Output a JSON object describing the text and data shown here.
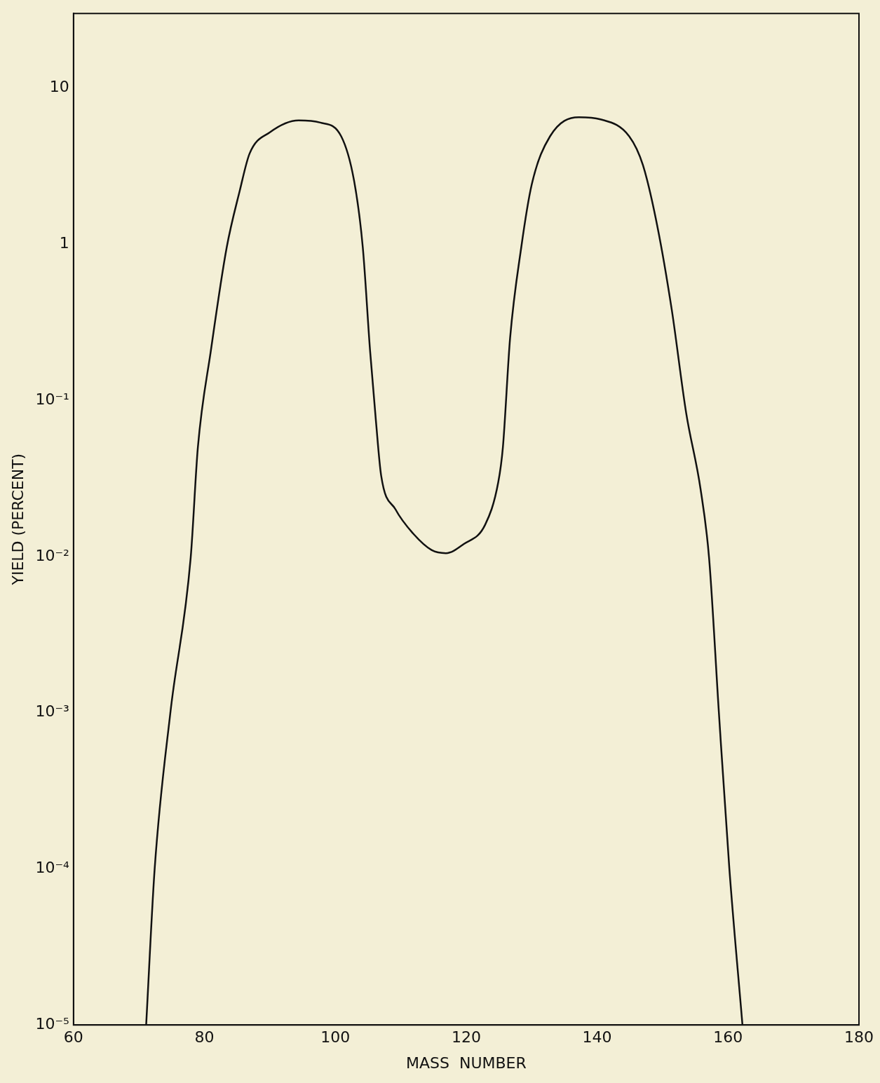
{
  "chart_data": {
    "type": "line",
    "xlabel": "MASS  NUMBER",
    "ylabel": "YIELD (PERCENT)",
    "x": [
      71.1,
      72.4,
      74.8,
      77.9,
      79.0,
      81.0,
      83.4,
      85.4,
      86.9,
      90.0,
      94.4,
      97.7,
      100.9,
      102.9,
      104.2,
      105.3,
      106.2,
      107.0,
      109.2,
      111.9,
      114.7,
      116.9,
      119.6,
      122.9,
      124.9,
      125.6,
      126.7,
      128.4,
      130.0,
      132.8,
      137.2,
      140.5,
      144.9,
      147.0,
      149.2,
      151.4,
      153.6,
      155.8,
      157.1,
      158.6,
      160.2,
      162.2
    ],
    "series": [
      {
        "color": "#111111",
        "values": [
          1e-05,
          0.0001,
          0.001,
          0.0098,
          0.05,
          0.21,
          0.95,
          2.2,
          3.8,
          5.2,
          6.2,
          6.0,
          4.9,
          2.5,
          0.95,
          0.21,
          0.074,
          0.033,
          0.02,
          0.014,
          0.011,
          0.0105,
          0.012,
          0.016,
          0.03,
          0.05,
          0.25,
          0.95,
          2.4,
          4.9,
          6.5,
          6.3,
          4.9,
          3.2,
          1.3,
          0.38,
          0.083,
          0.027,
          0.0098,
          0.001,
          0.0001,
          1e-05
        ]
      }
    ],
    "log": "y",
    "xlim": [
      60,
      180
    ],
    "ylim": [
      1e-05,
      30
    ],
    "xticks": [
      60,
      80,
      100,
      120,
      140,
      160,
      180
    ],
    "yticks": [
      {
        "value": 10,
        "label": "10"
      },
      {
        "value": 1,
        "label": "1"
      },
      {
        "value": 0.1,
        "label": "10⁻¹"
      },
      {
        "value": 0.01,
        "label": "10⁻²"
      },
      {
        "value": 0.001,
        "label": "10⁻³"
      },
      {
        "value": 0.0001,
        "label": "10⁻⁴"
      },
      {
        "value": 1e-05,
        "label": "10⁻⁵"
      }
    ],
    "grid": false,
    "legend": false,
    "marker": "none",
    "line_style": "solid"
  }
}
